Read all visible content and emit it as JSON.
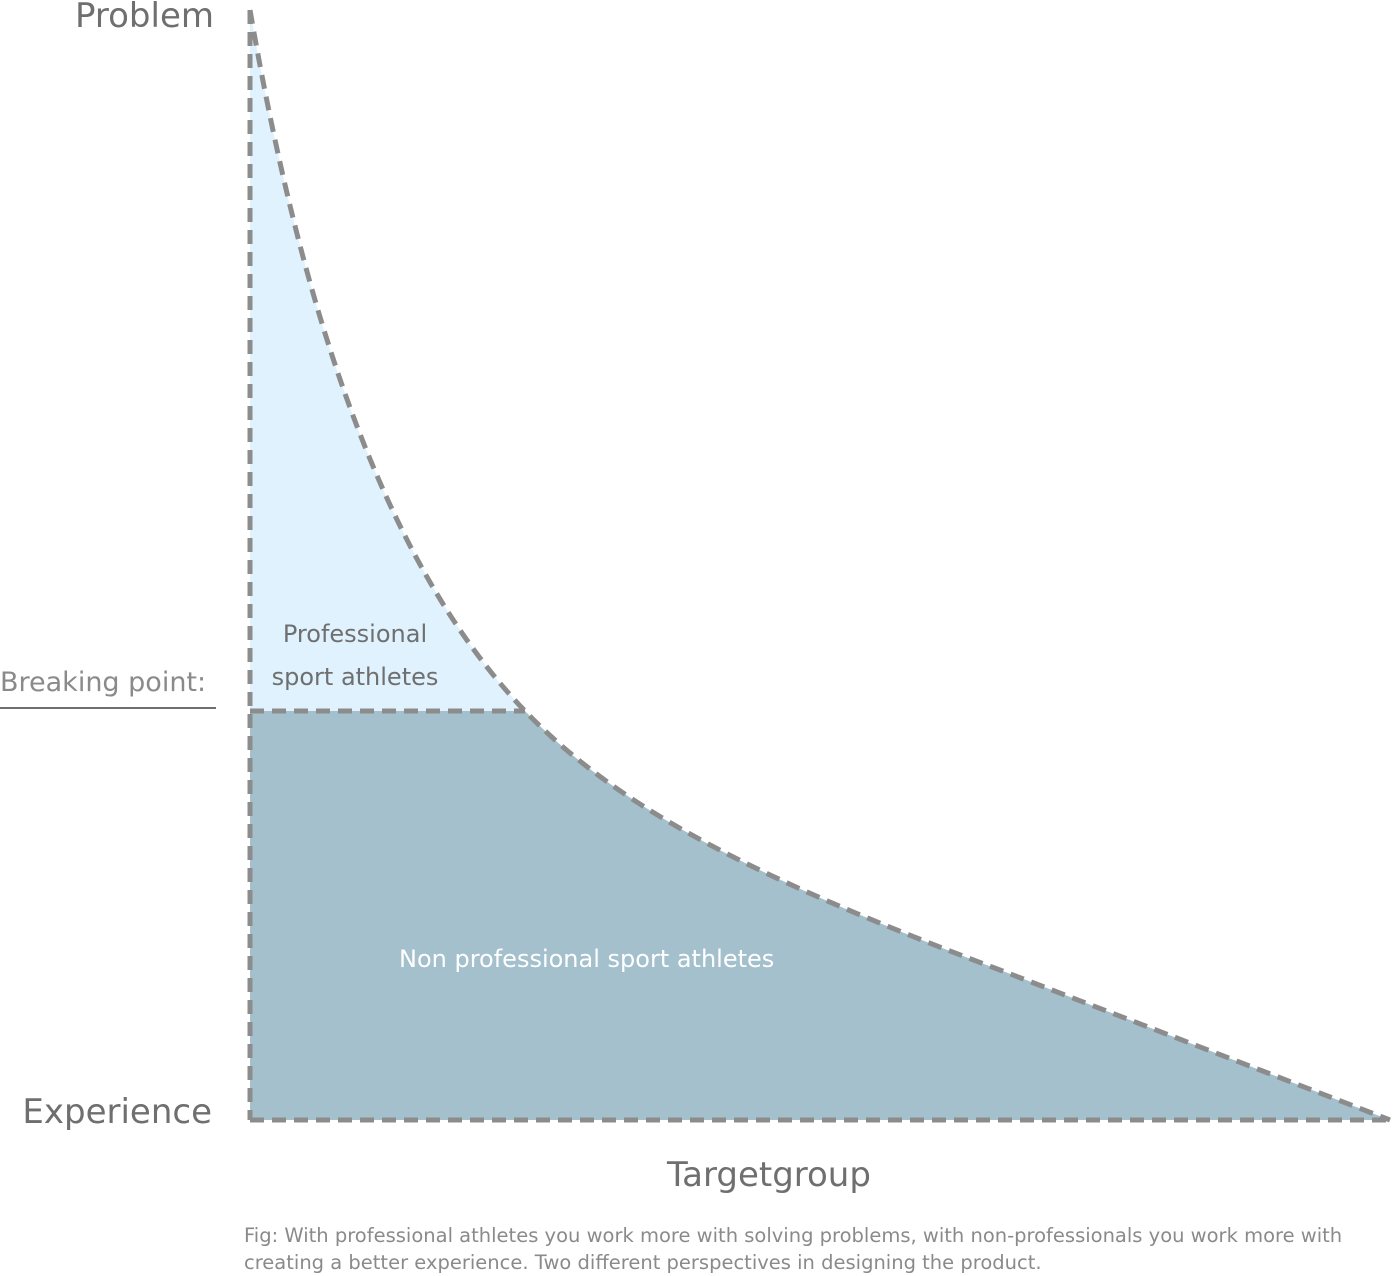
{
  "axes": {
    "top_label": "Problem",
    "bottom_label": "Experience",
    "x_label": "Targetgroup",
    "breaking_point": "Breaking point:"
  },
  "regions": {
    "professional": [
      "Professional",
      "sport athletes"
    ],
    "non_professional": "Non professional sport athletes"
  },
  "caption": "Fig: With professional athletes you work more with solving problems, with non-professionals you work more with creating a better experience. Two different perspectives in designing the product."
}
